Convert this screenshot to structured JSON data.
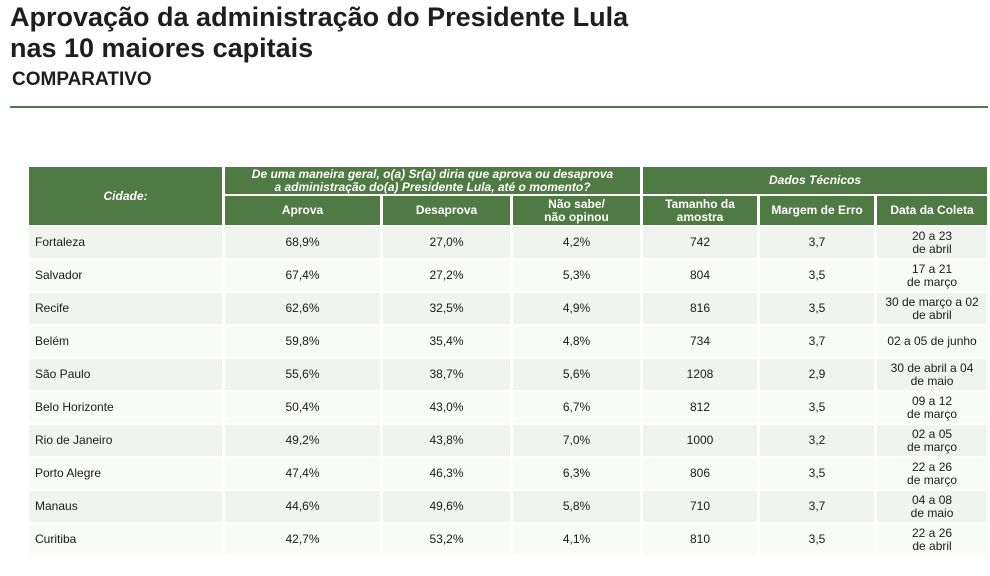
{
  "title_line1": "Aprovação da administração do Presidente Lula",
  "title_line2": "nas 10 maiores capitais",
  "subtitle": "COMPARATIVO",
  "header": {
    "city": "Cidade:",
    "question_line1": "De uma maneira geral, o(a) Sr(a) diria que aprova ou desaprova",
    "question_line2": "a administração do(a) Presidente Lula, até o momento?",
    "technical": "Dados Técnicos",
    "approve": "Aprova",
    "disapprove": "Desaprova",
    "no_answer_line1": "Não sabe/",
    "no_answer_line2": "não opinou",
    "sample_line1": "Tamanho da",
    "sample_line2": "amostra",
    "margin": "Margem de Erro",
    "date": "Data da Coleta"
  },
  "rows": [
    {
      "city": "Fortaleza",
      "approve": "68,9%",
      "disapprove": "27,0%",
      "no_answer": "4,2%",
      "sample": "742",
      "margin": "3,7",
      "date_line1": "20 a 23",
      "date_line2": "de abril"
    },
    {
      "city": "Salvador",
      "approve": "67,4%",
      "disapprove": "27,2%",
      "no_answer": "5,3%",
      "sample": "804",
      "margin": "3,5",
      "date_line1": "17 a 21",
      "date_line2": "de março"
    },
    {
      "city": "Recife",
      "approve": "62,6%",
      "disapprove": "32,5%",
      "no_answer": "4,9%",
      "sample": "816",
      "margin": "3,5",
      "date_line1": "30 de março a 02",
      "date_line2": "de abril"
    },
    {
      "city": "Belém",
      "approve": "59,8%",
      "disapprove": "35,4%",
      "no_answer": "4,8%",
      "sample": "734",
      "margin": "3,7",
      "date_line1": "02 a 05 de junho",
      "date_line2": ""
    },
    {
      "city": "São Paulo",
      "approve": "55,6%",
      "disapprove": "38,7%",
      "no_answer": "5,6%",
      "sample": "1208",
      "margin": "2,9",
      "date_line1": "30 de abril a 04",
      "date_line2": "de maio"
    },
    {
      "city": "Belo Horizonte",
      "approve": "50,4%",
      "disapprove": "43,0%",
      "no_answer": "6,7%",
      "sample": "812",
      "margin": "3,5",
      "date_line1": "09 a 12",
      "date_line2": "de março"
    },
    {
      "city": "Rio de Janeiro",
      "approve": "49,2%",
      "disapprove": "43,8%",
      "no_answer": "7,0%",
      "sample": "1000",
      "margin": "3,2",
      "date_line1": "02 a 05",
      "date_line2": "de março"
    },
    {
      "city": "Porto Alegre",
      "approve": "47,4%",
      "disapprove": "46,3%",
      "no_answer": "6,3%",
      "sample": "806",
      "margin": "3,5",
      "date_line1": "22 a 26",
      "date_line2": "de março"
    },
    {
      "city": "Manaus",
      "approve": "44,6%",
      "disapprove": "49,6%",
      "no_answer": "5,8%",
      "sample": "710",
      "margin": "3,7",
      "date_line1": "04 a 08",
      "date_line2": "de maio"
    },
    {
      "city": "Curitiba",
      "approve": "42,7%",
      "disapprove": "53,2%",
      "no_answer": "4,1%",
      "sample": "810",
      "margin": "3,5",
      "date_line1": "22 a 26",
      "date_line2": "de abril"
    }
  ]
}
